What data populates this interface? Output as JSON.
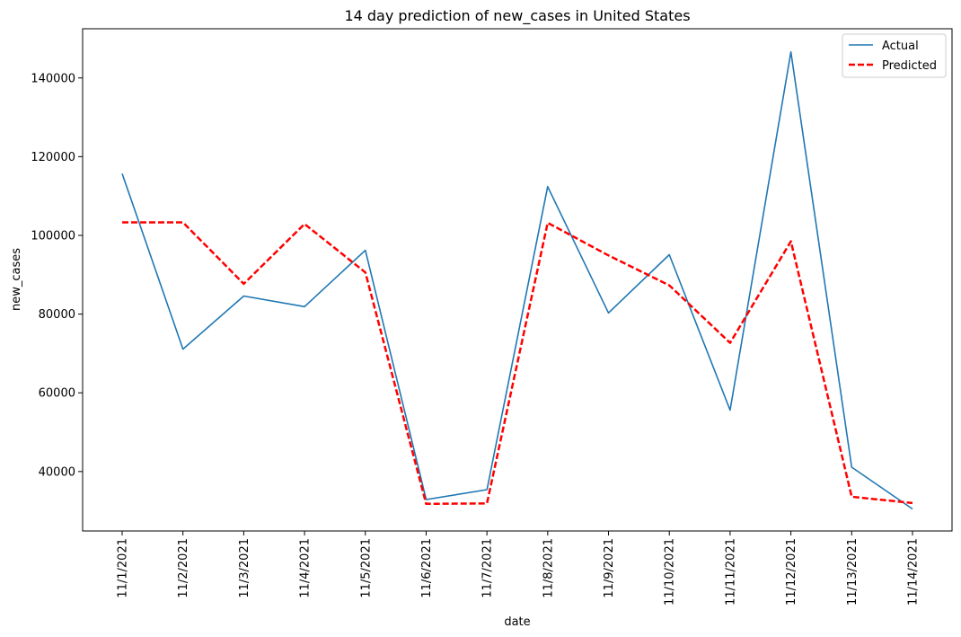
{
  "chart_data": {
    "type": "line",
    "title": "14 day prediction of new_cases in United States",
    "xlabel": "date",
    "ylabel": "new_cases",
    "categories": [
      "11/1/2021",
      "11/2/2021",
      "11/3/2021",
      "11/4/2021",
      "11/5/2021",
      "11/6/2021",
      "11/7/2021",
      "11/8/2021",
      "11/9/2021",
      "11/10/2021",
      "11/11/2021",
      "11/12/2021",
      "11/13/2021",
      "11/14/2021"
    ],
    "ylim": [
      24900,
      152500
    ],
    "yticks": [
      40000,
      60000,
      80000,
      100000,
      120000,
      140000
    ],
    "grid": false,
    "legend_position": "top-right",
    "series": [
      {
        "name": "Actual",
        "color": "#1f77b4",
        "style": "solid",
        "values": [
          115700,
          71100,
          84600,
          81900,
          96200,
          32900,
          35400,
          112400,
          80300,
          95100,
          55600,
          146600,
          41100,
          30500
        ]
      },
      {
        "name": "Predicted",
        "color": "#ff0000",
        "style": "dashed",
        "values": [
          103300,
          103300,
          87700,
          102900,
          90600,
          31800,
          31900,
          103200,
          94900,
          87300,
          72700,
          98500,
          33600,
          32000
        ]
      }
    ]
  }
}
